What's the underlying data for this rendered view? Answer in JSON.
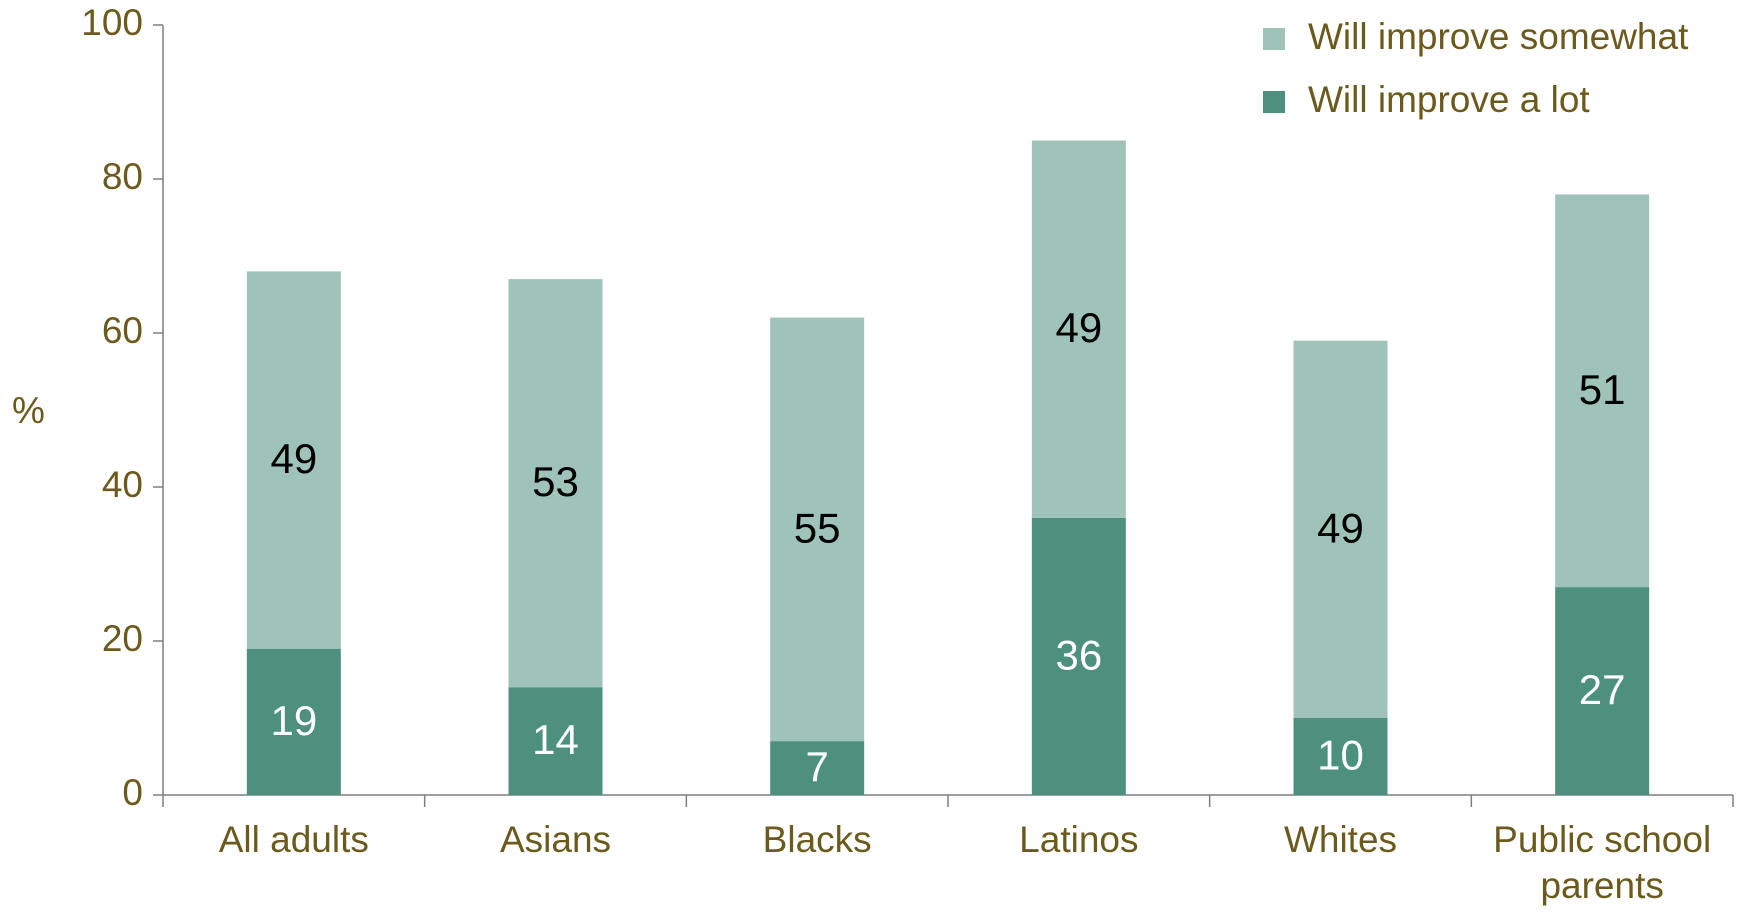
{
  "chart_data": {
    "type": "bar",
    "stacked": true,
    "categories": [
      "All adults",
      "Asians",
      "Blacks",
      "Latinos",
      "Whites",
      "Public school parents"
    ],
    "series": [
      {
        "name": "Will improve a lot",
        "values": [
          19,
          14,
          7,
          36,
          10,
          27
        ],
        "color": "#4e907e",
        "label_color": "#ffffff"
      },
      {
        "name": "Will improve somewhat",
        "values": [
          49,
          53,
          55,
          49,
          49,
          51
        ],
        "color": "#9fc3b8",
        "label_color": "#000000"
      }
    ],
    "ylabel": "%",
    "ylim": [
      0,
      100
    ],
    "yticks": [
      0,
      20,
      40,
      60,
      80,
      100
    ],
    "grid": false,
    "legend": {
      "placement": "top-right",
      "order": [
        "Will improve somewhat",
        "Will improve a lot"
      ]
    },
    "colors": {
      "text": "#6b5a1c",
      "axis": "#7f7f7f"
    }
  }
}
